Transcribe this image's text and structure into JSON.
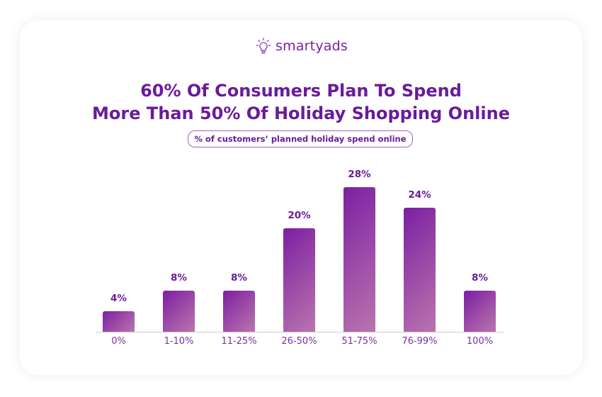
{
  "brand": {
    "name": "smartyads",
    "icon": "lightbulb-icon",
    "accent": "#7b1fa2"
  },
  "header": {
    "title_line1": "60% Of Consumers Plan To Spend",
    "title_line2": "More Than 50% Of Holiday Shopping Online",
    "subtitle": "% of customers’ planned holiday spend online"
  },
  "chart_data": {
    "type": "bar",
    "title": "60% Of Consumers Plan To Spend More Than 50% Of Holiday Shopping Online",
    "subtitle": "% of customers’ planned holiday spend online",
    "categories": [
      "0%",
      "1-10%",
      "11-25%",
      "26-50%",
      "51-75%",
      "76-99%",
      "100%"
    ],
    "values": [
      4,
      8,
      8,
      20,
      28,
      24,
      8
    ],
    "labels": [
      "4%",
      "8%",
      "8%",
      "20%",
      "28%",
      "24%",
      "8%"
    ],
    "xlabel": "",
    "ylabel": "",
    "ylim": [
      0,
      30
    ],
    "grid": false,
    "legend": null,
    "colors": {
      "bar_start": "#7b1fa2",
      "bar_end": "#b875ad"
    }
  }
}
